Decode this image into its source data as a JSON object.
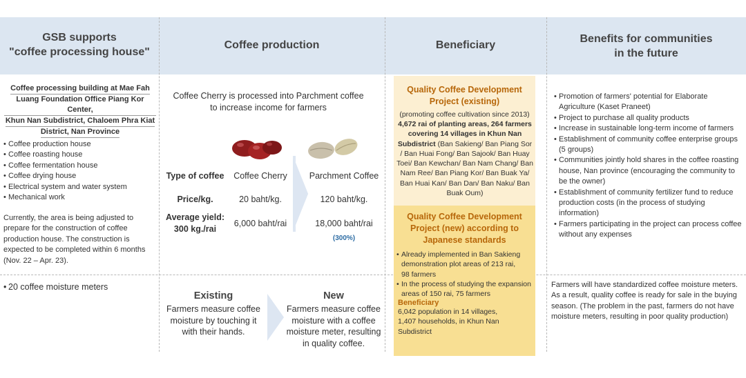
{
  "headers": {
    "col1": "GSB supports\n\"coffee processing house\"",
    "col2": "Coffee production",
    "col3": "Beneficiary",
    "col4": "Benefits for communities\nin the future"
  },
  "col1": {
    "location_lines": [
      "Coffee processing building at Mae Fah",
      "Luang Foundation Office Piang Kor Center,",
      "Khun Nan Subdistrict, Chaloem Phra Kiat",
      "District, Nan Province"
    ],
    "facilities": [
      "Coffee production house",
      "Coffee roasting house",
      "Coffee fermentation house",
      "Coffee drying house",
      "Electrical system and water system",
      "Mechanical work"
    ],
    "note": "Currently, the area is being adjusted to prepare for the construction of coffee production house. The construction is expected to be completed within 6 months (Nov. 22 – Apr. 23).",
    "meters_item": "20 coffee moisture meters"
  },
  "col2": {
    "intro": "Coffee Cherry is processed into Parchment coffee\nto increase income for farmers",
    "row_labels": {
      "type": "Type of coffee",
      "price": "Price/kg.",
      "yield": "Average yield:\n300 kg./rai"
    },
    "cherry": {
      "name": "Coffee Cherry",
      "price": "20 baht/kg.",
      "yield": "6,000 baht/rai"
    },
    "parchment": {
      "name": "Parchment Coffee",
      "price": "120 baht/kg.",
      "yield": "18,000 baht/rai",
      "increase": "(300%)"
    },
    "existing": {
      "title": "Existing",
      "text": "Farmers measure coffee\nmoisture by touching it\nwith their hands."
    },
    "new": {
      "title": "New",
      "text": "Farmers measure coffee\nmoisture with a coffee\nmoisture meter, resulting\nin quality coffee."
    }
  },
  "col3": {
    "existing_project": {
      "title": "Quality Coffee Development\nProject (existing)",
      "since": "(promoting coffee cultivation since 2013)",
      "areas_bold": "4,672 rai of planting areas, 264 farmers\ncovering 14 villages in Khun Nan\nSubdistrict",
      "villages": " (Ban Sakieng/ Ban Piang Sor / Ban Huai Fong/ Ban Sajook/ Ban Huay Toei/ Ban Kewchan/ Ban Nam Chang/ Ban Nam Ree/ Ban Piang Kor/ Ban Buak Ya/ Ban Huai Kan/ Ban Dan/ Ban Naku/ Ban Buak Oum)"
    },
    "new_project": {
      "title": "Quality Coffee Development\nProject (new) according to\nJapanese standards",
      "items": [
        "Already implemented in Ban Sakieng demonstration plot areas of 213 rai,\n98 farmers",
        "In the process of studying the expansion areas of 150 rai, 75 farmers"
      ],
      "beneficiary_label": "Beneficiary",
      "beneficiary_text": "6,042 population in 14 villages,\n1,407 households, in Khun Nan\nSubdistrict"
    }
  },
  "col4": {
    "benefits": [
      "Promotion of farmers' potential for Elaborate Agriculture (Kaset Praneet)",
      "Project to purchase all quality products",
      "Increase in sustainable long-term income of farmers",
      "Establishment of community coffee enterprise groups (5 groups)",
      "Communities jointly hold shares in the coffee roasting house, Nan province (encouraging the community to be the owner)",
      "Establishment of community fertilizer fund to reduce production costs (in the process of studying information)",
      "Farmers participating in the project can process coffee without any expenses"
    ],
    "meters_text": "Farmers will have standardized coffee moisture meters. As a result, quality coffee is ready for sale in the buying season. (The problem in the past, farmers do not have moisture meters, resulting in poor quality production)"
  },
  "colors": {
    "header_bg": "#dce6f1",
    "box_existing_bg": "#fcefd2",
    "box_new_bg": "#f8df93",
    "box_title": "#b7670a",
    "percent_blue": "#2e6da4",
    "chevron": "#dde6f2",
    "cherry_red": "#8f1d1e",
    "bean_beige": "#c9c0ab"
  }
}
